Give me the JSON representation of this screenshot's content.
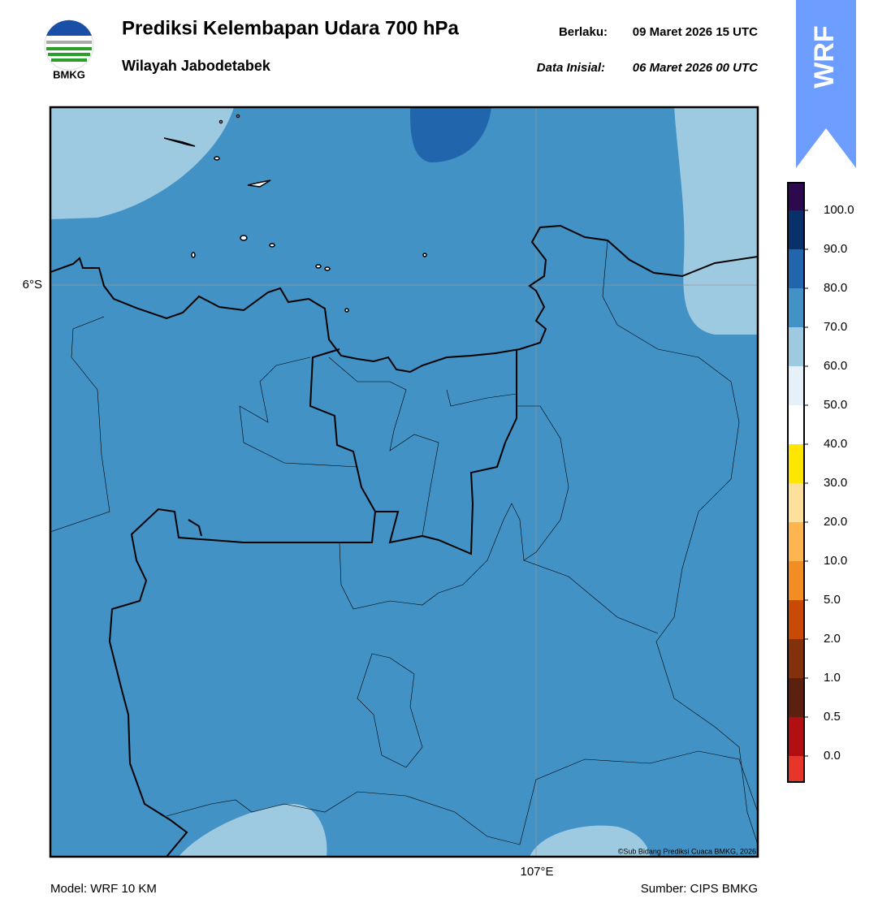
{
  "header": {
    "logo_text": "BMKG",
    "title": "Prediksi Kelembapan Udara 700 hPa",
    "subtitle": "Wilayah Jabodetabek",
    "valid_label": "Berlaku:",
    "valid_value": "09 Maret 2026 15 UTC",
    "init_label": "Data Inisial:",
    "init_value": "06 Maret 2026 00 UTC"
  },
  "badge": "WRF",
  "map": {
    "lat_label": "6°S",
    "lon_label": "107°E",
    "copyright": "©Sub Bidang Prediksi Cuaca BMKG, 2026"
  },
  "colorbar": {
    "colors": [
      "#e8352a",
      "#b10f12",
      "#5c200e",
      "#83310c",
      "#c94a06",
      "#f28d24",
      "#fdb54f",
      "#fde09b",
      "#ffe600",
      "#ffffff",
      "#e6f0f8",
      "#9ecae1",
      "#4292c6",
      "#2166ac",
      "#08306b",
      "#2d0a4e"
    ],
    "labels": [
      "0.0",
      "0.5",
      "1.0",
      "2.0",
      "5.0",
      "10.0",
      "20.0",
      "30.0",
      "40.0",
      "50.0",
      "60.0",
      "70.0",
      "80.0",
      "90.0",
      "100.0"
    ]
  },
  "footer": {
    "model": "Model: WRF 10 KM",
    "source": "Sumber: CIPS BMKG"
  }
}
